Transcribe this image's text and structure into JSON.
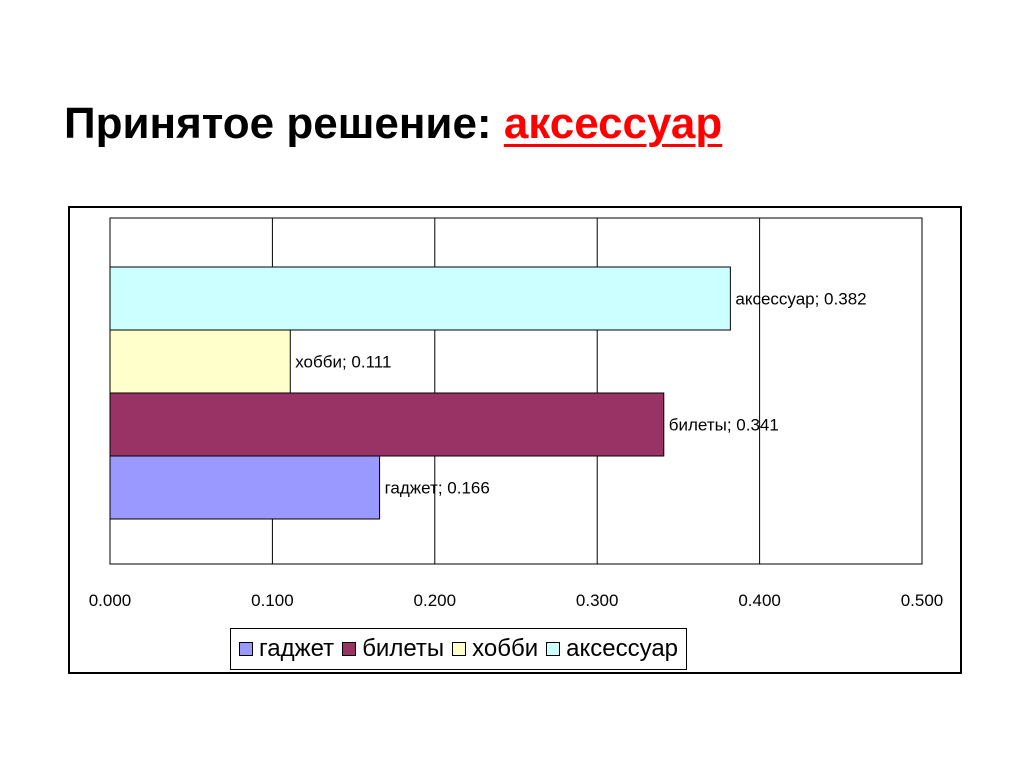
{
  "slide": {
    "title_prefix": "Принятое решение: ",
    "title_highlight": "аксессуар"
  },
  "colors": {
    "title_highlight": "#ff0000",
    "gridline": "#000000"
  },
  "chart_data": {
    "type": "bar",
    "orientation": "horizontal",
    "categories": [
      "гаджет",
      "билеты",
      "хобби",
      "аксессуар"
    ],
    "values": [
      0.166,
      0.341,
      0.111,
      0.382
    ],
    "colors": [
      "#9999ff",
      "#993366",
      "#ffffcc",
      "#ccffff"
    ],
    "data_labels": [
      "гаджет; 0.166",
      "билеты; 0.341",
      "хобби; 0.111",
      "аксессуар; 0.382"
    ],
    "xlim": [
      0,
      0.5
    ],
    "x_ticks": [
      0,
      0.1,
      0.2,
      0.3,
      0.4,
      0.5
    ],
    "x_tick_labels": [
      "0.000",
      "0.100",
      "0.200",
      "0.300",
      "0.400",
      "0.500"
    ],
    "grid": true,
    "legend_position": "bottom",
    "legend": [
      "гаджет",
      "билеты",
      "хобби",
      "аксессуар"
    ]
  }
}
